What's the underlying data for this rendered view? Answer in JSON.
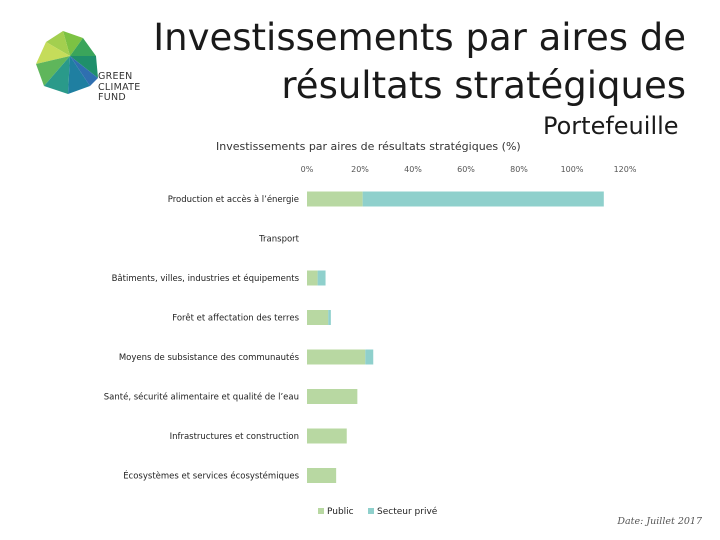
{
  "logo": {
    "lines": [
      "GREEN",
      "CLIMATE",
      "FUND"
    ]
  },
  "title": {
    "line1": "Investissements par aires de",
    "line2": "résultats stratégiques"
  },
  "subtitle": "Portefeuille",
  "date": "Date: Juillet 2017",
  "colors": {
    "public": "#b8d8a2",
    "private": "#8fd0cc"
  },
  "chart_data": {
    "type": "bar",
    "orientation": "horizontal",
    "stacked": true,
    "title": "Investissements par aires de résultats stratégiques (%)",
    "xlim": [
      0,
      120
    ],
    "ticks": [
      "0%",
      "20%",
      "40%",
      "60%",
      "80%",
      "100%",
      "120%"
    ],
    "categories": [
      "Production et accès à l’énergie",
      "Transport",
      "Bâtiments, villes, industries et équipements",
      "Forêt et affectation des terres",
      "Moyens de subsistance des communautés",
      "Santé, sécurité alimentaire et qualité de l’eau",
      "Infrastructures et construction",
      "Écosystèmes et services écosystémiques"
    ],
    "series": [
      {
        "name": "Public",
        "values": [
          21,
          0,
          4,
          8,
          22,
          19,
          15,
          11
        ]
      },
      {
        "name": "Secteur privé",
        "values": [
          91,
          0,
          3,
          1,
          3,
          0,
          0,
          0
        ]
      }
    ],
    "legend_position": "bottom",
    "grid": false
  }
}
